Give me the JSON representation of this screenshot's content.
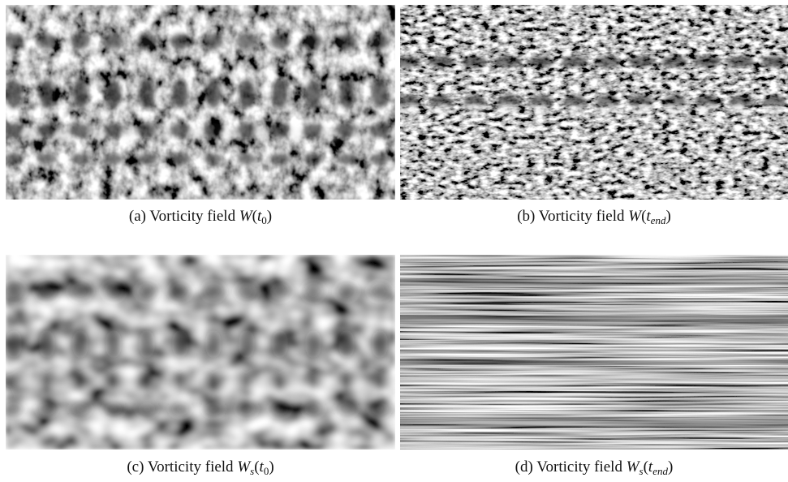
{
  "figures": [
    {
      "caption": [
        {
          "text": "(a) Vorticity field "
        },
        {
          "text": "W",
          "italic": true
        },
        {
          "text": "("
        },
        {
          "text": "t",
          "italic": true
        },
        {
          "text": "0",
          "sub": true
        },
        {
          "text": ")"
        }
      ]
    },
    {
      "caption": [
        {
          "text": "(b) Vorticity field "
        },
        {
          "text": "W",
          "italic": true
        },
        {
          "text": "("
        },
        {
          "text": "t",
          "italic": true
        },
        {
          "text": "end",
          "sub": true,
          "italic": true
        },
        {
          "text": ")"
        }
      ]
    },
    {
      "caption": [
        {
          "text": "(c) Vorticity field "
        },
        {
          "text": "W",
          "italic": true
        },
        {
          "text": "s",
          "sub": true,
          "italic": true
        },
        {
          "text": "("
        },
        {
          "text": "t",
          "italic": true
        },
        {
          "text": "0",
          "sub": true
        },
        {
          "text": ")"
        }
      ]
    },
    {
      "caption": [
        {
          "text": "(d) Vorticity field "
        },
        {
          "text": "W",
          "italic": true
        },
        {
          "text": "s",
          "sub": true,
          "italic": true
        },
        {
          "text": "("
        },
        {
          "text": "t",
          "italic": true
        },
        {
          "text": "end",
          "sub": true,
          "italic": true
        },
        {
          "text": ")"
        }
      ]
    }
  ]
}
